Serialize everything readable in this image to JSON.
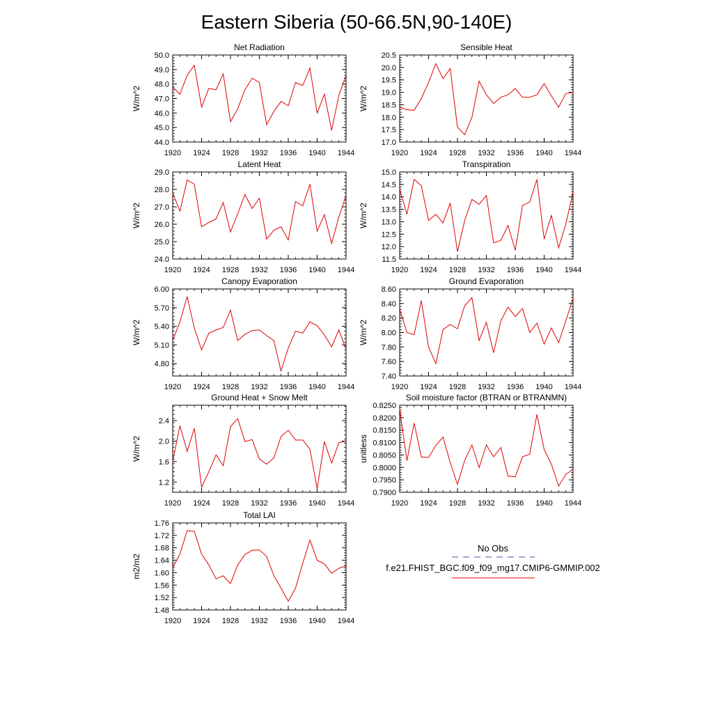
{
  "title": "Eastern Siberia (50-66.5N,90-140E)",
  "legend": {
    "obs_label": "No Obs",
    "obs_color": "#4a4aa8",
    "model_label": "f.e21.FHIST_BGC.f09_f09_mg17.CMIP6-GMMIP.002",
    "model_color": "#e00000"
  },
  "chart_data": [
    {
      "type": "line",
      "title": "Net Radiation",
      "ylabel": "W/m^2",
      "xlim": [
        1920,
        1944
      ],
      "ylim": [
        44.0,
        50.0
      ],
      "xticks": [
        "1920",
        "1924",
        "1928",
        "1932",
        "1936",
        "1940",
        "1944"
      ],
      "yticks": [
        "44.0",
        "45.0",
        "46.0",
        "47.0",
        "48.0",
        "49.0",
        "50.0"
      ],
      "series": [
        {
          "color": "#e00000",
          "x": [
            1920,
            1921,
            1922,
            1923,
            1924,
            1925,
            1926,
            1927,
            1928,
            1929,
            1930,
            1931,
            1932,
            1933,
            1934,
            1935,
            1936,
            1937,
            1938,
            1939,
            1940,
            1941,
            1942,
            1943,
            1944
          ],
          "y": [
            47.8,
            47.3,
            48.6,
            49.3,
            46.4,
            47.7,
            47.6,
            48.7,
            45.4,
            46.3,
            47.6,
            48.4,
            48.1,
            45.2,
            46.1,
            46.8,
            46.5,
            48.1,
            47.9,
            49.1,
            46.0,
            47.3,
            44.8,
            47.2,
            48.6
          ]
        }
      ]
    },
    {
      "type": "line",
      "title": "Sensible Heat",
      "ylabel": "W/m^2",
      "xlim": [
        1920,
        1944
      ],
      "ylim": [
        17.0,
        20.5
      ],
      "xticks": [
        "1920",
        "1924",
        "1928",
        "1932",
        "1936",
        "1940",
        "1944"
      ],
      "yticks": [
        "17.0",
        "17.5",
        "18.0",
        "18.5",
        "19.0",
        "19.5",
        "20.0",
        "20.5"
      ],
      "series": [
        {
          "color": "#e00000",
          "x": [
            1920,
            1921,
            1922,
            1923,
            1924,
            1925,
            1926,
            1927,
            1928,
            1929,
            1930,
            1931,
            1932,
            1933,
            1934,
            1935,
            1936,
            1937,
            1938,
            1939,
            1940,
            1941,
            1942,
            1943,
            1944
          ],
          "y": [
            18.4,
            18.3,
            18.28,
            18.75,
            19.4,
            20.15,
            19.55,
            19.95,
            17.6,
            17.3,
            18.0,
            19.45,
            18.9,
            18.55,
            18.8,
            18.9,
            19.15,
            18.8,
            18.8,
            18.9,
            19.35,
            18.85,
            18.4,
            18.95,
            19.0
          ]
        }
      ]
    },
    {
      "type": "line",
      "title": "Latent Heat",
      "ylabel": "W/m^2",
      "xlim": [
        1920,
        1944
      ],
      "ylim": [
        24.0,
        29.0
      ],
      "xticks": [
        "1920",
        "1924",
        "1928",
        "1932",
        "1936",
        "1940",
        "1944"
      ],
      "yticks": [
        "24.0",
        "25.0",
        "26.0",
        "27.0",
        "28.0",
        "29.0"
      ],
      "series": [
        {
          "color": "#e00000",
          "x": [
            1920,
            1921,
            1922,
            1923,
            1924,
            1925,
            1926,
            1927,
            1928,
            1929,
            1930,
            1931,
            1932,
            1933,
            1934,
            1935,
            1936,
            1937,
            1938,
            1939,
            1940,
            1941,
            1942,
            1943,
            1944
          ],
          "y": [
            27.8,
            26.75,
            28.55,
            28.3,
            25.85,
            26.1,
            26.3,
            27.25,
            25.55,
            26.6,
            27.7,
            26.9,
            27.5,
            25.15,
            25.65,
            25.85,
            25.1,
            27.3,
            27.05,
            28.3,
            25.6,
            26.55,
            24.9,
            26.4,
            27.65
          ]
        }
      ]
    },
    {
      "type": "line",
      "title": "Transpiration",
      "ylabel": "W/m^2",
      "xlim": [
        1920,
        1944
      ],
      "ylim": [
        11.5,
        15.0
      ],
      "xticks": [
        "1920",
        "1924",
        "1928",
        "1932",
        "1936",
        "1940",
        "1944"
      ],
      "yticks": [
        "11.5",
        "12.0",
        "12.5",
        "13.0",
        "13.5",
        "14.0",
        "14.5",
        "15.0"
      ],
      "series": [
        {
          "color": "#e00000",
          "x": [
            1920,
            1921,
            1922,
            1923,
            1924,
            1925,
            1926,
            1927,
            1928,
            1929,
            1930,
            1931,
            1932,
            1933,
            1934,
            1935,
            1936,
            1937,
            1938,
            1939,
            1940,
            1941,
            1942,
            1943,
            1944
          ],
          "y": [
            14.3,
            13.3,
            14.7,
            14.45,
            13.05,
            13.3,
            12.95,
            13.75,
            11.8,
            13.05,
            13.9,
            13.7,
            14.05,
            12.15,
            12.25,
            12.85,
            11.85,
            13.65,
            13.8,
            14.7,
            12.3,
            13.25,
            11.95,
            12.9,
            14.2
          ]
        }
      ]
    },
    {
      "type": "line",
      "title": "Canopy Evaporation",
      "ylabel": "W/m^2",
      "xlim": [
        1920,
        1944
      ],
      "ylim": [
        4.6,
        6.0
      ],
      "xticks": [
        "1920",
        "1924",
        "1928",
        "1932",
        "1936",
        "1940",
        "1944"
      ],
      "yticks": [
        "4.80",
        "5.10",
        "5.40",
        "5.70",
        "6.00"
      ],
      "series": [
        {
          "color": "#e00000",
          "x": [
            1920,
            1921,
            1922,
            1923,
            1924,
            1925,
            1926,
            1927,
            1928,
            1929,
            1930,
            1931,
            1932,
            1933,
            1934,
            1935,
            1936,
            1937,
            1938,
            1939,
            1940,
            1941,
            1942,
            1943,
            1944
          ],
          "y": [
            5.17,
            5.47,
            5.88,
            5.37,
            5.02,
            5.29,
            5.34,
            5.38,
            5.66,
            5.17,
            5.27,
            5.33,
            5.34,
            5.25,
            5.17,
            4.68,
            5.05,
            5.32,
            5.29,
            5.47,
            5.41,
            5.26,
            5.07,
            5.34,
            5.03
          ]
        }
      ]
    },
    {
      "type": "line",
      "title": "Ground Evaporation",
      "ylabel": "W/m^2",
      "xlim": [
        1920,
        1944
      ],
      "ylim": [
        7.4,
        8.6
      ],
      "xticks": [
        "1920",
        "1924",
        "1928",
        "1932",
        "1936",
        "1940",
        "1944"
      ],
      "yticks": [
        "7.40",
        "7.60",
        "7.80",
        "8.00",
        "8.20",
        "8.40",
        "8.60"
      ],
      "series": [
        {
          "color": "#e00000",
          "x": [
            1920,
            1921,
            1922,
            1923,
            1924,
            1925,
            1926,
            1927,
            1928,
            1929,
            1930,
            1931,
            1932,
            1933,
            1934,
            1935,
            1936,
            1937,
            1938,
            1939,
            1940,
            1941,
            1942,
            1943,
            1944
          ],
          "y": [
            8.32,
            8.0,
            7.97,
            8.44,
            7.8,
            7.57,
            8.04,
            8.11,
            8.05,
            8.37,
            8.48,
            7.89,
            8.14,
            7.72,
            8.16,
            8.35,
            8.22,
            8.33,
            8.0,
            8.13,
            7.84,
            8.06,
            7.86,
            8.16,
            8.47
          ]
        }
      ]
    },
    {
      "type": "line",
      "title": "Ground Heat + Snow Melt",
      "ylabel": "W/m^2",
      "xlim": [
        1920,
        1944
      ],
      "ylim": [
        1.0,
        2.7
      ],
      "xticks": [
        "1920",
        "1924",
        "1928",
        "1932",
        "1936",
        "1940",
        "1944"
      ],
      "yticks": [
        "1.2",
        "1.6",
        "2.0",
        "2.4"
      ],
      "series": [
        {
          "color": "#e00000",
          "x": [
            1920,
            1921,
            1922,
            1923,
            1924,
            1925,
            1926,
            1927,
            1928,
            1929,
            1930,
            1931,
            1932,
            1933,
            1934,
            1935,
            1936,
            1937,
            1938,
            1939,
            1940,
            1941,
            1942,
            1943,
            1944
          ],
          "y": [
            1.6,
            2.3,
            1.8,
            2.25,
            1.1,
            1.4,
            1.73,
            1.52,
            2.28,
            2.44,
            1.99,
            2.03,
            1.65,
            1.55,
            1.67,
            2.09,
            2.21,
            2.02,
            2.02,
            1.84,
            1.07,
            1.99,
            1.57,
            1.97,
            2.0
          ]
        }
      ]
    },
    {
      "type": "line",
      "title": "Soil moisture factor (BTRAN or BTRANMN)",
      "ylabel": "unitless",
      "xlim": [
        1920,
        1944
      ],
      "ylim": [
        0.79,
        0.825
      ],
      "xticks": [
        "1920",
        "1924",
        "1928",
        "1932",
        "1936",
        "1940",
        "1944"
      ],
      "yticks": [
        "0.7900",
        "0.7950",
        "0.8000",
        "0.8050",
        "0.8100",
        "0.8150",
        "0.8200",
        "0.8250"
      ],
      "series": [
        {
          "color": "#e00000",
          "x": [
            1920,
            1921,
            1922,
            1923,
            1924,
            1925,
            1926,
            1927,
            1928,
            1929,
            1930,
            1931,
            1932,
            1933,
            1934,
            1935,
            1936,
            1937,
            1938,
            1939,
            1940,
            1941,
            1942,
            1943,
            1944
          ],
          "y": [
            0.8235,
            0.8027,
            0.8178,
            0.8042,
            0.804,
            0.8088,
            0.8122,
            0.8019,
            0.7932,
            0.8028,
            0.809,
            0.7999,
            0.809,
            0.8043,
            0.808,
            0.7965,
            0.7962,
            0.8043,
            0.8053,
            0.8213,
            0.8072,
            0.8013,
            0.7925,
            0.7972,
            0.7992
          ]
        }
      ]
    },
    {
      "type": "line",
      "title": "Total LAI",
      "ylabel": "m2/m2",
      "xlim": [
        1920,
        1944
      ],
      "ylim": [
        1.48,
        1.76
      ],
      "xticks": [
        "1920",
        "1924",
        "1928",
        "1932",
        "1936",
        "1940",
        "1944"
      ],
      "yticks": [
        "1.48",
        "1.52",
        "1.56",
        "1.60",
        "1.64",
        "1.68",
        "1.72",
        "1.76"
      ],
      "series": [
        {
          "color": "#e00000",
          "x": [
            1920,
            1921,
            1922,
            1923,
            1924,
            1925,
            1926,
            1927,
            1928,
            1929,
            1930,
            1931,
            1932,
            1933,
            1934,
            1935,
            1936,
            1937,
            1938,
            1939,
            1940,
            1941,
            1942,
            1943,
            1944
          ],
          "y": [
            1.615,
            1.66,
            1.735,
            1.733,
            1.66,
            1.625,
            1.58,
            1.59,
            1.565,
            1.625,
            1.658,
            1.672,
            1.673,
            1.652,
            1.59,
            1.55,
            1.508,
            1.55,
            1.63,
            1.705,
            1.64,
            1.628,
            1.598,
            1.614,
            1.622
          ]
        }
      ]
    }
  ]
}
